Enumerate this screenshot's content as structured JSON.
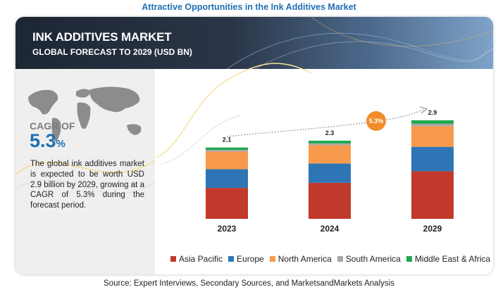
{
  "page": {
    "title": "Attractive Opportunities in the Ink Additives Market",
    "source": "Source: Expert Interviews, Secondary Sources, and MarketsandMarkets Analysis"
  },
  "banner": {
    "title": "INK ADDITIVES MARKET",
    "subtitle": "GLOBAL FORECAST TO 2029 (USD BN)"
  },
  "panel": {
    "cagr_label": "CAGR OF",
    "cagr_value": "5.3",
    "cagr_unit": "%",
    "description": "The global ink additives market is expected to be worth USD 2.9 billion by 2029, growing at a CAGR of 5.3% during the forecast period."
  },
  "cagr_bubble": "5.3%",
  "chart_data": {
    "type": "bar",
    "stacked": true,
    "categories": [
      "2023",
      "2024",
      "2029"
    ],
    "totals": [
      2.1,
      2.3,
      2.9
    ],
    "total_labels": [
      "2.1",
      "2.3",
      "2.9"
    ],
    "series": [
      {
        "name": "Asia Pacific",
        "color": "#c1392b",
        "values": [
          0.91,
          1.06,
          1.4
        ]
      },
      {
        "name": "Europe",
        "color": "#2e75b6",
        "values": [
          0.55,
          0.57,
          0.72
        ]
      },
      {
        "name": "North America",
        "color": "#f79a4b",
        "values": [
          0.52,
          0.54,
          0.61
        ]
      },
      {
        "name": "South America",
        "color": "#a6a6a6",
        "values": [
          0.05,
          0.05,
          0.07
        ]
      },
      {
        "name": "Middle East & Africa",
        "color": "#1fa84f",
        "values": [
          0.07,
          0.08,
          0.1
        ]
      }
    ],
    "legend_position": "bottom",
    "grid": false,
    "ylim": [
      0,
      2.9
    ]
  }
}
